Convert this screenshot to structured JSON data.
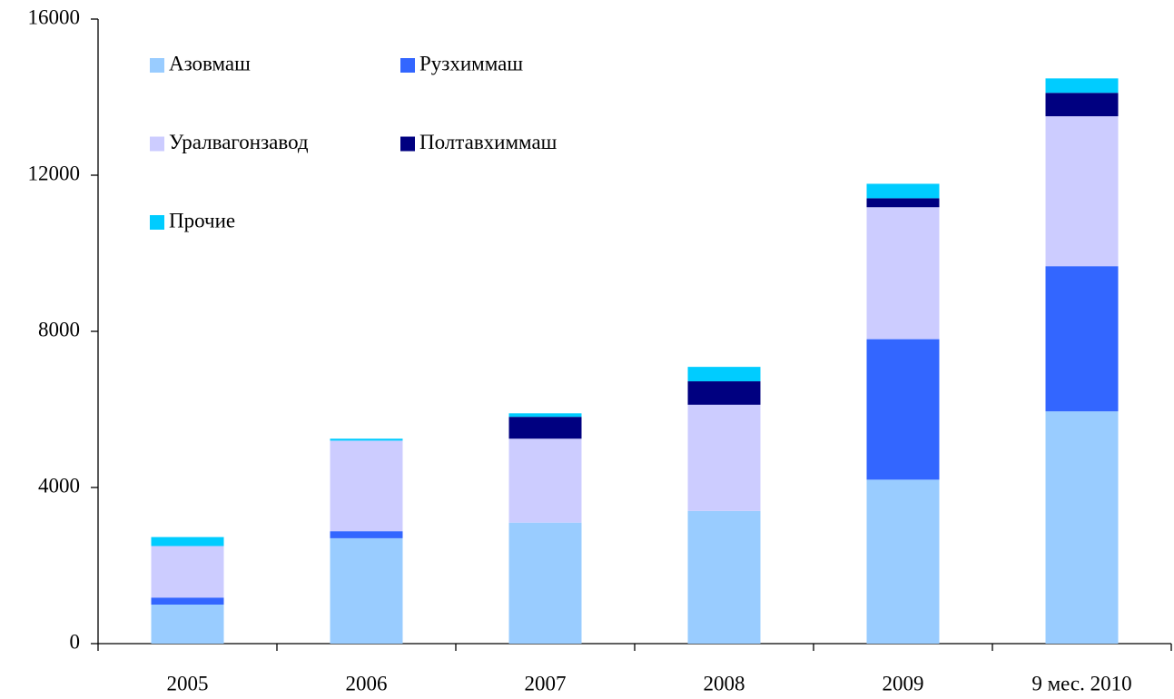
{
  "chart_data": {
    "type": "stacked_bar",
    "categories": [
      "2005",
      "2006",
      "2007",
      "2008",
      "2009",
      "9 мес. 2010"
    ],
    "series": [
      {
        "name": "Азовмаш",
        "color": "#99ccff",
        "values": [
          1000,
          2700,
          3100,
          3400,
          4200,
          5950
        ]
      },
      {
        "name": "Рузхиммаш",
        "color": "#3366ff",
        "values": [
          180,
          180,
          0,
          0,
          3600,
          3720
        ]
      },
      {
        "name": "Уралвагонзавод",
        "color": "#ccccff",
        "values": [
          1320,
          2320,
          2150,
          2720,
          3380,
          3840
        ]
      },
      {
        "name": "Полтавхиммаш",
        "color": "#000080",
        "values": [
          0,
          0,
          560,
          600,
          230,
          600
        ]
      },
      {
        "name": "Прочие",
        "color": "#00ccff",
        "values": [
          230,
          50,
          90,
          370,
          370,
          370
        ]
      }
    ],
    "ylim": [
      0,
      16000
    ],
    "yticks": [
      0,
      4000,
      8000,
      12000,
      16000
    ],
    "grid": false
  }
}
